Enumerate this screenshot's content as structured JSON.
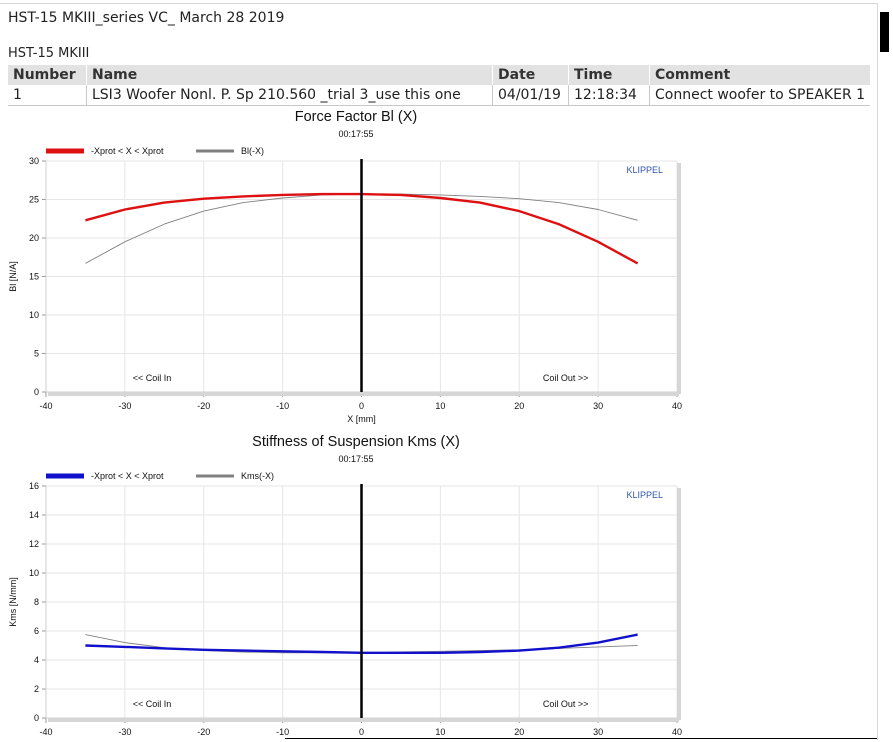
{
  "document": {
    "title": "HST-15 MKIII_series VC_ March 28 2019",
    "device": "HST-15 MKIII"
  },
  "info_table": {
    "headers": [
      "Number",
      "Name",
      "Date",
      "Time",
      "Comment"
    ],
    "row": [
      "1",
      "LSI3 Woofer Nonl. P. Sp 210.560 _trial 3_use this one",
      "04/01/19",
      "12:18:34",
      "Connect woofer to SPEAKER 1"
    ]
  },
  "colors": {
    "red": "#dd1111",
    "blue": "#1111cc",
    "gray": "#808080"
  },
  "chart_data": [
    {
      "type": "line",
      "title": "Force Factor Bl (X)",
      "subtitle": "00:17:55",
      "brand": "KLIPPEL",
      "xlabel": "X [mm]",
      "ylabel": "Bl [N/A]",
      "xlim": [
        -40,
        40
      ],
      "ylim": [
        0,
        30
      ],
      "xticks": [
        -40,
        -30,
        -20,
        -10,
        0,
        10,
        20,
        30,
        40
      ],
      "yticks": [
        0,
        5,
        10,
        15,
        20,
        25,
        30
      ],
      "annotations": [
        "<< Coil In",
        "Coil Out >>"
      ],
      "legend_position": "top-left",
      "series": [
        {
          "name": "-Xprot < X < Xprot",
          "color": "#dd1111",
          "width": "thick",
          "x": [
            -35,
            -30,
            -25,
            -20,
            -15,
            -10,
            -5,
            0,
            5,
            10,
            15,
            20,
            25,
            30,
            35
          ],
          "y": [
            22.3,
            23.7,
            24.6,
            25.1,
            25.4,
            25.6,
            25.7,
            25.7,
            25.6,
            25.2,
            24.6,
            23.5,
            21.8,
            19.5,
            16.7
          ]
        },
        {
          "name": "Bl(-X)",
          "color": "#808080",
          "width": "thin",
          "x": [
            -35,
            -30,
            -25,
            -20,
            -15,
            -10,
            -5,
            0,
            5,
            10,
            15,
            20,
            25,
            30,
            35
          ],
          "y": [
            16.7,
            19.5,
            21.8,
            23.5,
            24.6,
            25.2,
            25.6,
            25.7,
            25.7,
            25.6,
            25.4,
            25.1,
            24.6,
            23.7,
            22.3
          ]
        }
      ]
    },
    {
      "type": "line",
      "title": "Stiffness of Suspension Kms (X)",
      "subtitle": "00:17:55",
      "brand": "KLIPPEL",
      "xlabel": "",
      "ylabel": "Kms [N/mm]",
      "xlim": [
        -40,
        40
      ],
      "ylim": [
        0,
        16
      ],
      "xticks": [
        -40,
        -30,
        -20,
        -10,
        0,
        10,
        20,
        30,
        40
      ],
      "yticks": [
        0,
        2,
        4,
        6,
        8,
        10,
        12,
        14,
        16
      ],
      "annotations": [
        "<< Coil In",
        "Coil Out >>"
      ],
      "legend_position": "top-left",
      "series": [
        {
          "name": "-Xprot < X < Xprot",
          "color": "#1111cc",
          "width": "thick",
          "x": [
            -35,
            -30,
            -25,
            -20,
            -15,
            -10,
            -5,
            0,
            5,
            10,
            15,
            20,
            25,
            30,
            35
          ],
          "y": [
            5.0,
            4.9,
            4.8,
            4.7,
            4.65,
            4.6,
            4.55,
            4.5,
            4.5,
            4.5,
            4.55,
            4.65,
            4.85,
            5.2,
            5.75
          ]
        },
        {
          "name": "Kms(-X)",
          "color": "#808080",
          "width": "thin",
          "x": [
            -35,
            -30,
            -25,
            -20,
            -15,
            -10,
            -5,
            0,
            5,
            10,
            15,
            20,
            25,
            30,
            35
          ],
          "y": [
            5.75,
            5.2,
            4.85,
            4.65,
            4.55,
            4.5,
            4.5,
            4.5,
            4.55,
            4.6,
            4.65,
            4.7,
            4.8,
            4.9,
            5.0
          ]
        }
      ]
    }
  ]
}
